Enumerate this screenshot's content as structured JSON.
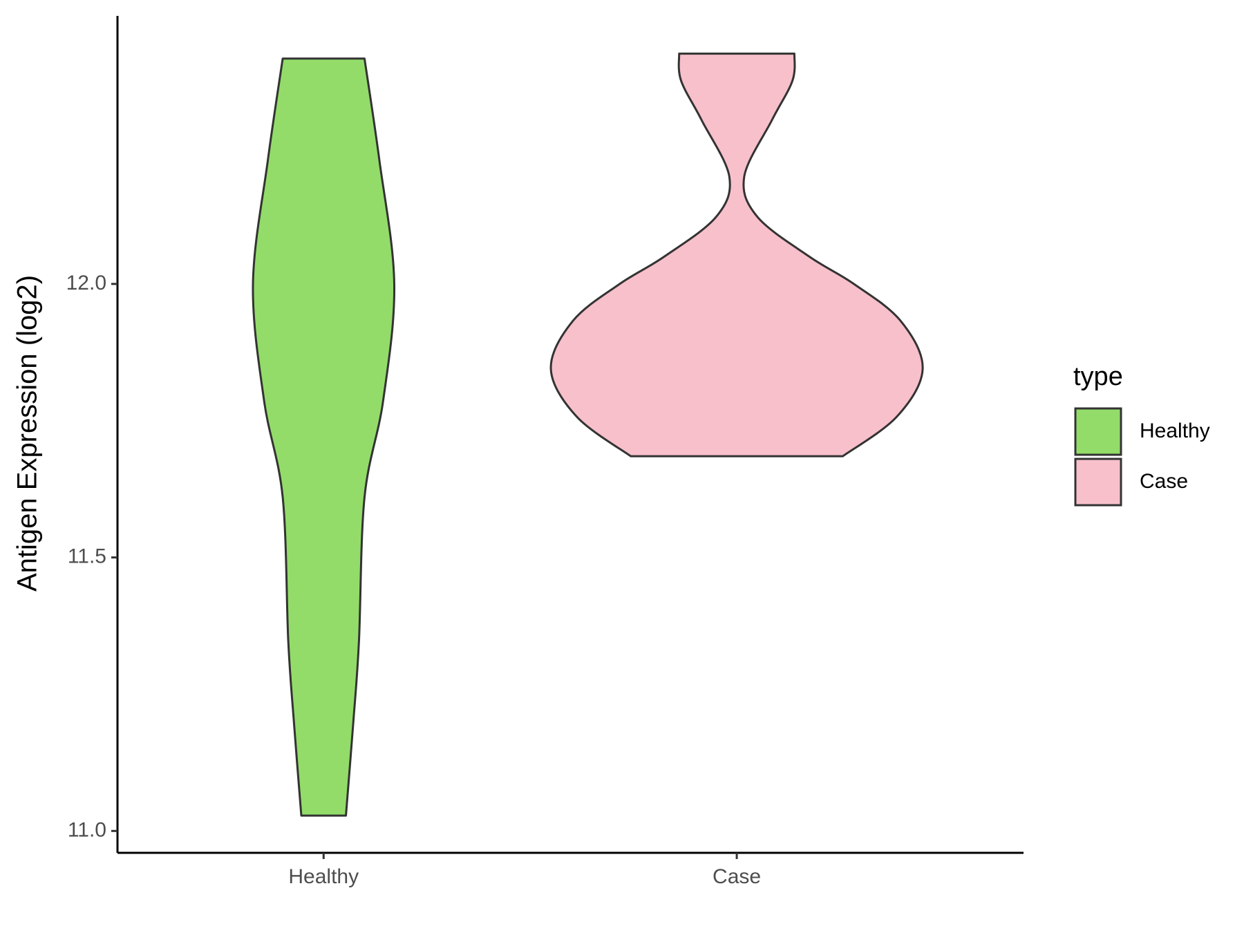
{
  "chart_data": {
    "type": "violin",
    "y_label": "Antigen Expression (log2)",
    "categories": [
      "Healthy",
      "Case"
    ],
    "legend_title": "type",
    "legend_position": "right",
    "series": [
      {
        "name": "Healthy",
        "color": "#93dc6a",
        "y": [
          12.412,
          12.226,
          12.0,
          11.786,
          11.61,
          11.346,
          11.2,
          11.028
        ],
        "density": [
          0.22,
          0.3,
          0.38,
          0.32,
          0.22,
          0.19,
          0.16,
          0.12
        ]
      },
      {
        "name": "Case",
        "color": "#f7c0cb",
        "y": [
          12.421,
          12.372,
          12.3,
          12.196,
          12.123,
          12.05,
          12.0,
          11.933,
          11.845,
          11.757,
          11.685
        ],
        "density": [
          0.31,
          0.3,
          0.19,
          0.04,
          0.11,
          0.39,
          0.63,
          0.88,
          1.0,
          0.86,
          0.57
        ]
      }
    ],
    "ylim": [
      10.96,
      12.49
    ],
    "yticks": [
      {
        "value": 11,
        "label": "11.0"
      },
      11.5,
      {
        "value": 12,
        "label": "12.0"
      }
    ]
  }
}
